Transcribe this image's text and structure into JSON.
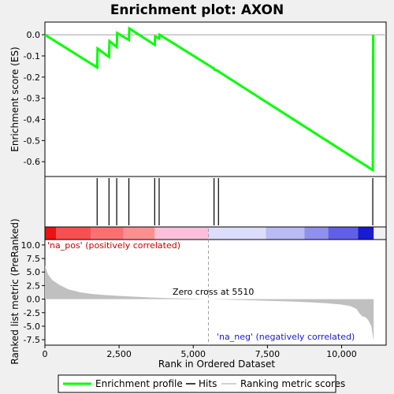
{
  "chart_data": {
    "type": "line",
    "title": "Enrichment plot: AXON",
    "top_panel": {
      "ylabel": "Enrichment score (ES)",
      "ylim": [
        -0.67,
        0.06
      ],
      "yticks": [
        "0.0",
        "-0.1",
        "-0.2",
        "-0.3",
        "-0.4",
        "-0.5",
        "-0.6"
      ],
      "ytick_values": [
        0.0,
        -0.1,
        -0.2,
        -0.3,
        -0.4,
        -0.5,
        -0.6
      ],
      "grid": false,
      "series": [
        {
          "name": "Enrichment profile",
          "color": "#00ff00",
          "x": [
            0,
            1760,
            1775,
            2160,
            2175,
            2420,
            2435,
            2830,
            2845,
            3700,
            3715,
            3850,
            3865,
            5700,
            5715,
            5850,
            5865,
            11050,
            11065
          ],
          "y": [
            0.0,
            -0.155,
            -0.065,
            -0.105,
            -0.03,
            -0.058,
            0.008,
            -0.025,
            0.03,
            -0.048,
            -0.008,
            -0.018,
            0.0,
            -0.16,
            -0.165,
            -0.172,
            -0.175,
            -0.64,
            0.0
          ]
        }
      ]
    },
    "hits": {
      "name": "Hits",
      "positions": [
        1760,
        2160,
        2420,
        2830,
        3700,
        3850,
        5700,
        5850,
        11050
      ]
    },
    "ranking": {
      "name": "Ranking metric scores",
      "ylabel": "Ranked list metric (PreRanked)",
      "ylim": [
        -8.5,
        11
      ],
      "yticks": [
        "10.0",
        "7.5",
        "5.0",
        "2.5",
        "0.0",
        "-2.5",
        "-5.0",
        "-7.5"
      ],
      "ytick_values": [
        10.0,
        7.5,
        5.0,
        2.5,
        0.0,
        -2.5,
        -5.0,
        -7.5
      ],
      "profile_x": [
        0,
        100,
        250,
        500,
        800,
        1200,
        1600,
        2000,
        2500,
        3000,
        3500,
        4000,
        4500,
        5000,
        5510,
        6000,
        6500,
        7000,
        7500,
        8000,
        8500,
        9000,
        9500,
        10000,
        10300,
        10500,
        10600,
        10700,
        10800,
        10900,
        11000,
        11080
      ],
      "profile_y": [
        6.2,
        4.6,
        3.5,
        2.6,
        1.8,
        1.25,
        0.95,
        0.75,
        0.6,
        0.45,
        0.32,
        0.22,
        0.14,
        0.07,
        0.0,
        -0.08,
        -0.15,
        -0.22,
        -0.3,
        -0.38,
        -0.48,
        -0.6,
        -0.78,
        -1.0,
        -1.3,
        -1.8,
        -2.6,
        -3.2,
        -3.3,
        -3.9,
        -5.0,
        -7.8
      ],
      "zero_cross_label": "Zero cross at 5510",
      "zero_cross": 5510,
      "pos_label": "'na_pos' (positively correlated)",
      "neg_label": "'na_neg' (negatively correlated)"
    },
    "x_axis": {
      "xlabel": "Rank in Ordered Dataset",
      "xlim": [
        0,
        11500
      ],
      "xticks": [
        "0",
        "2,500",
        "5,000",
        "7,500",
        "10,000"
      ],
      "xtick_values": [
        0,
        2500,
        5000,
        7500,
        10000
      ]
    },
    "color_bar": {
      "segments": [
        {
          "from": 0,
          "to": 380,
          "color": "#ee1111"
        },
        {
          "from": 380,
          "to": 1550,
          "color": "#f85050"
        },
        {
          "from": 1550,
          "to": 2650,
          "color": "#fb7070"
        },
        {
          "from": 2650,
          "to": 3700,
          "color": "#fc9090"
        },
        {
          "from": 3700,
          "to": 5510,
          "color": "#fcc0dc"
        },
        {
          "from": 5510,
          "to": 7450,
          "color": "#dcdcfc"
        },
        {
          "from": 7450,
          "to": 8750,
          "color": "#babaf4"
        },
        {
          "from": 8750,
          "to": 9550,
          "color": "#9090ee"
        },
        {
          "from": 9550,
          "to": 10550,
          "color": "#6060e6"
        },
        {
          "from": 10550,
          "to": 11080,
          "color": "#1a1ad0"
        }
      ]
    },
    "legend": {
      "placement": "bottom",
      "entries": [
        "Enrichment profile",
        "Hits",
        "Ranking metric scores"
      ]
    }
  }
}
